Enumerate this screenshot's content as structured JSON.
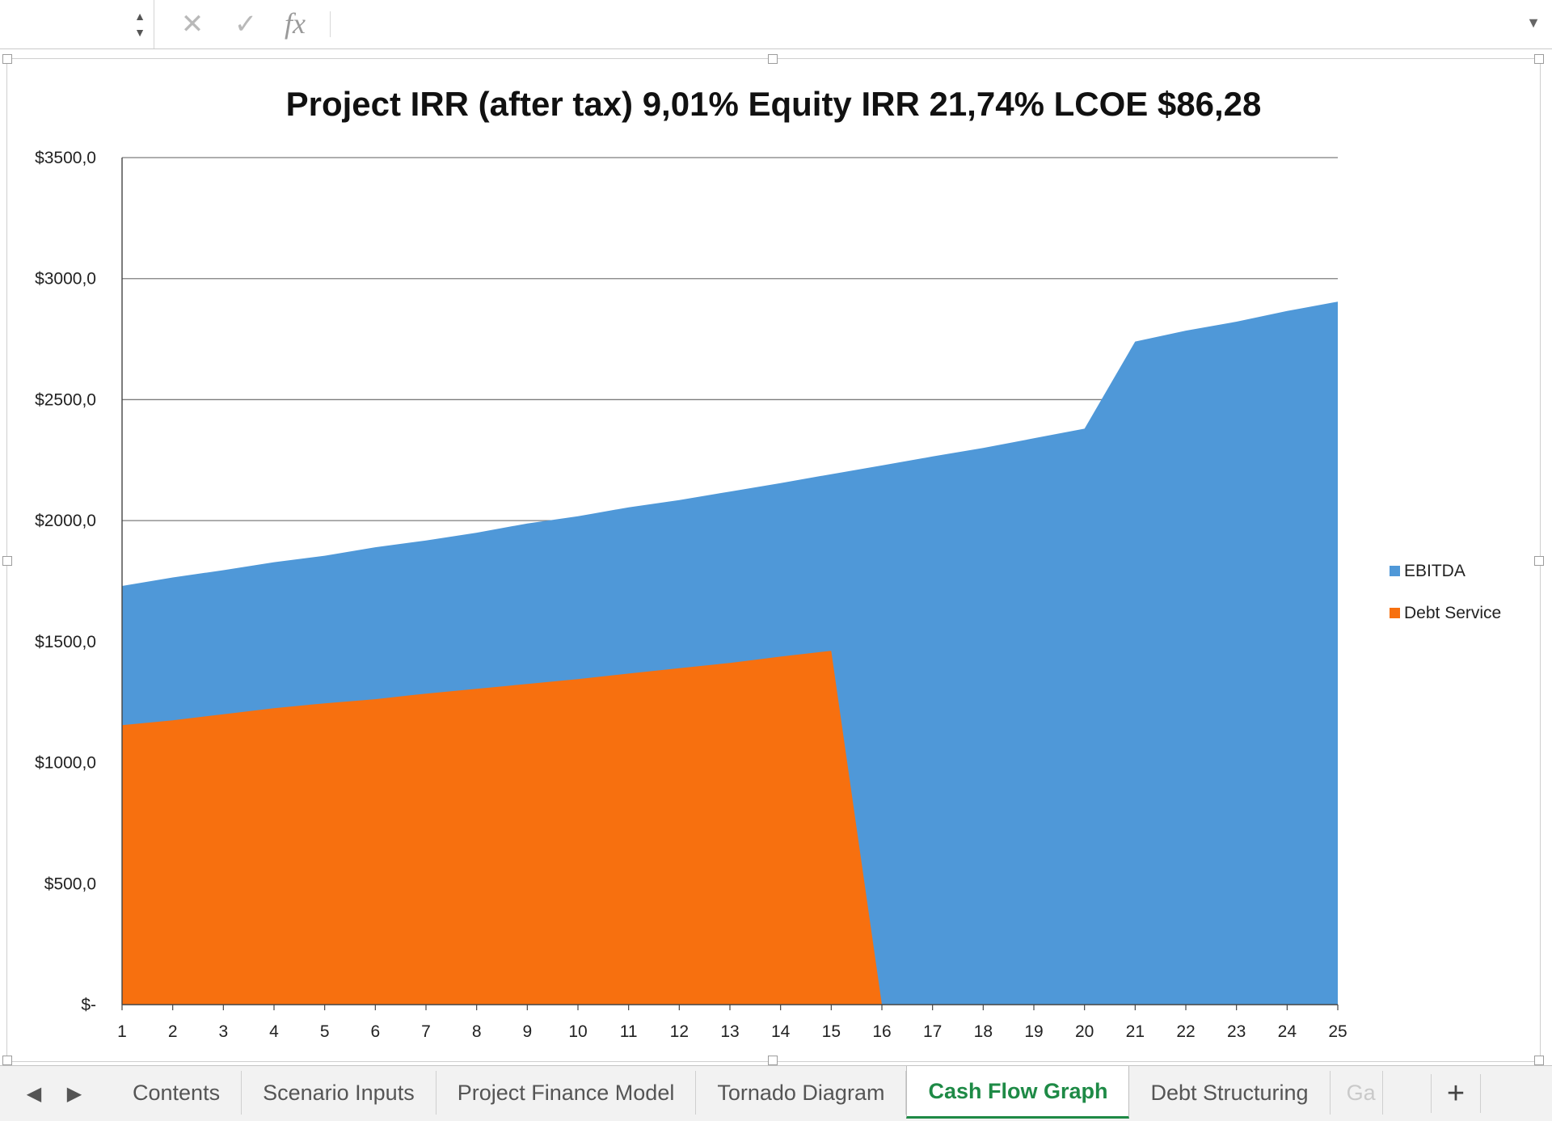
{
  "formula_bar": {
    "cancel_icon": "close-x-icon",
    "enter_icon": "checkmark-icon",
    "function_label": "fx"
  },
  "chart_data": {
    "type": "area",
    "title": "Project IRR (after tax) 9,01% Equity IRR 21,74% LCOE $86,28",
    "x": [
      1,
      2,
      3,
      4,
      5,
      6,
      7,
      8,
      9,
      10,
      11,
      12,
      13,
      14,
      15,
      16,
      17,
      18,
      19,
      20,
      21,
      22,
      23,
      24,
      25
    ],
    "y_ticks": [
      0,
      500,
      1000,
      1500,
      2000,
      2500,
      3000,
      3500
    ],
    "y_tick_labels": [
      "$-",
      "$500,0",
      "$1000,0",
      "$1500,0",
      "$2000,0",
      "$2500,0",
      "$3000,0",
      "$3500,0"
    ],
    "ylim": [
      0,
      3500
    ],
    "grid": true,
    "legend_position": "right",
    "series": [
      {
        "name": "EBITDA",
        "color": "#4f98d8",
        "values": [
          1730,
          1765,
          1795,
          1828,
          1855,
          1890,
          1918,
          1950,
          1988,
          2018,
          2055,
          2085,
          2120,
          2155,
          2192,
          2228,
          2265,
          2300,
          2340,
          2380,
          2740,
          2785,
          2822,
          2866,
          2905
        ]
      },
      {
        "name": "Debt Service",
        "color": "#f7700f",
        "values": [
          1155,
          1175,
          1200,
          1225,
          1245,
          1262,
          1285,
          1305,
          1325,
          1345,
          1368,
          1390,
          1412,
          1438,
          1462,
          0,
          0,
          0,
          0,
          0,
          0,
          0,
          0,
          0,
          0
        ]
      }
    ]
  },
  "sheet_tabs": {
    "items": [
      "Contents",
      "Scenario Inputs",
      "Project Finance Model",
      "Tornado Diagram",
      "Cash Flow Graph",
      "Debt Structuring",
      "Ga"
    ],
    "active": "Cash Flow Graph",
    "add_label": "+"
  }
}
